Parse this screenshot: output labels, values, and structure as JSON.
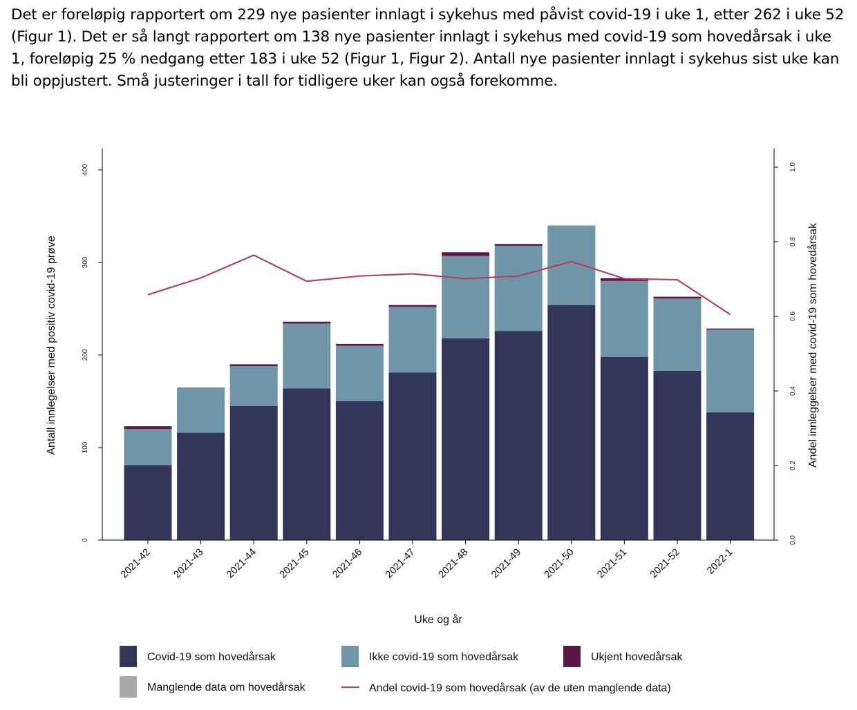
{
  "intro_text": "Det er foreløpig rapportert om 229 nye pasienter innlagt i sykehus med påvist covid-19 i uke 1, etter 262 i uke 52 (Figur 1). Det er så langt rapportert om 138 nye pasienter innlagt i sykehus med covid-19 som hovedårsak i uke 1, foreløpig 25 % nedgang etter 183 i uke 52 (Figur 1, Figur 2). Antall nye pasienter innlagt i sykehus sist uke kan bli oppjustert. Små justeringer i tall for tidligere uker kan også forekomme.",
  "chart_data": {
    "type": "bar",
    "stacked": true,
    "categories": [
      "2021-42",
      "2021-43",
      "2021-44",
      "2021-45",
      "2021-46",
      "2021-47",
      "2021-48",
      "2021-49",
      "2021-50",
      "2021-51",
      "2021-52",
      "2022-1"
    ],
    "series": [
      {
        "name": "Covid-19 som hovedårsak",
        "color": "#34355a",
        "values": [
          81,
          116,
          145,
          164,
          150,
          181,
          218,
          226,
          254,
          198,
          183,
          138
        ]
      },
      {
        "name": "Ikke covid-19 som hovedårsak",
        "color": "#6f95a6",
        "values": [
          39,
          49,
          43,
          70,
          60,
          71,
          89,
          92,
          86,
          82,
          78,
          89
        ]
      },
      {
        "name": "Ukjent hovedårsak",
        "color": "#5a1847",
        "values": [
          3,
          0,
          2,
          2,
          2,
          2,
          4,
          2,
          0,
          3,
          2,
          1
        ]
      },
      {
        "name": "Manglende data om hovedårsak",
        "color": "#a8a8a8",
        "values": [
          0,
          0,
          0,
          0,
          0,
          0,
          0,
          0,
          0,
          0,
          0,
          1
        ]
      }
    ],
    "line": {
      "name": "Andel covid-19 som hovedårsak (av de uten manglende data)",
      "color": "#b0435e",
      "axis": "right",
      "values": [
        0.658,
        0.703,
        0.764,
        0.694,
        0.708,
        0.714,
        0.701,
        0.708,
        0.747,
        0.701,
        0.698,
        0.605
      ]
    },
    "xlabel": "Uke og år",
    "ylabel": "Antall innlegelser med positiv covid-19 prøve",
    "ylabel_right": "Andel innleggelser med covid-19 som hovedårsak",
    "ylim": [
      0,
      400
    ],
    "yticks": [
      0,
      100,
      200,
      300,
      400
    ],
    "ylim_right": [
      0,
      1.0
    ],
    "yticks_right": [
      "0.0",
      "0.2",
      "0.4",
      "0.6",
      "0.8",
      "1.0"
    ],
    "grid": false,
    "legend_position": "bottom"
  }
}
